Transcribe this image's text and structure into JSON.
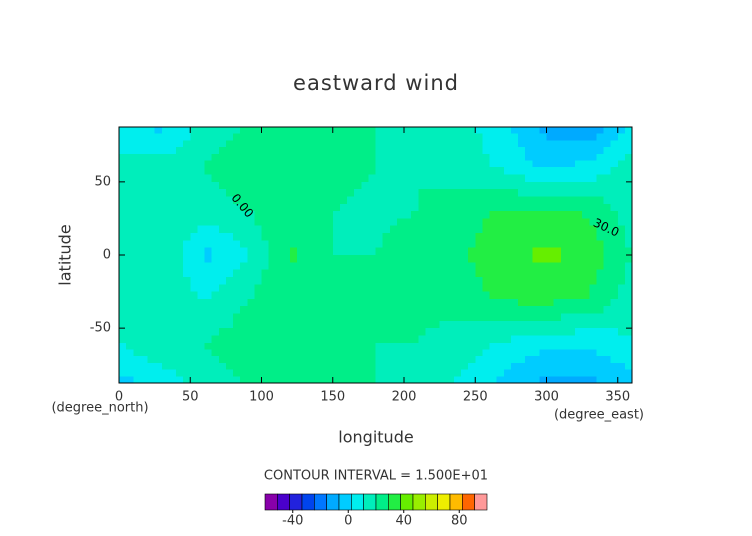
{
  "chart_data": {
    "type": "contour",
    "title": "eastward wind",
    "xlabel": "longitude",
    "ylabel": "latitude",
    "xunits": "(degree_east)",
    "yunits": "(degree_north)",
    "xlim": [
      0,
      360
    ],
    "ylim": [
      -87.5,
      87.5
    ],
    "xticks": [
      0,
      50,
      100,
      150,
      200,
      250,
      300,
      350
    ],
    "yticks": [
      -50,
      0,
      50
    ],
    "x": [
      0,
      30,
      60,
      90,
      120,
      150,
      180,
      210,
      240,
      270,
      300,
      330,
      360
    ],
    "y": [
      87.5,
      60,
      30,
      0,
      -30,
      -60,
      -87.5
    ],
    "z": [
      [
        5,
        0,
        15,
        20,
        20,
        20,
        20,
        18,
        15,
        5,
        -10,
        -15,
        5
      ],
      [
        15,
        15,
        20,
        25,
        25,
        22,
        20,
        20,
        15,
        10,
        0,
        5,
        15
      ],
      [
        15,
        20,
        15,
        20,
        28,
        20,
        18,
        20,
        25,
        30,
        30,
        28,
        15
      ],
      [
        20,
        20,
        0,
        10,
        30,
        20,
        20,
        25,
        28,
        35,
        40,
        35,
        20
      ],
      [
        15,
        20,
        10,
        20,
        28,
        20,
        20,
        22,
        25,
        30,
        32,
        28,
        15
      ],
      [
        10,
        20,
        20,
        25,
        25,
        22,
        20,
        20,
        15,
        10,
        5,
        5,
        10
      ],
      [
        0,
        5,
        15,
        20,
        20,
        20,
        20,
        18,
        10,
        0,
        -10,
        -10,
        0
      ]
    ],
    "annotations": [
      "0.00",
      "30.0"
    ],
    "contour_interval": "CONTOUR INTERVAL = 1.500E+01",
    "colorbar": {
      "lim": [
        -60,
        100
      ],
      "ticks": [
        -40,
        0,
        40,
        80
      ],
      "colors": [
        "#8800aa",
        "#4a00cc",
        "#2222dd",
        "#0044ee",
        "#0077ff",
        "#00aaff",
        "#00ccff",
        "#00eeee",
        "#00eebb",
        "#00ee88",
        "#22ee44",
        "#66ee00",
        "#99ee00",
        "#ccee00",
        "#eeee00",
        "#ffbb00",
        "#ff6600",
        "#ff9999"
      ]
    }
  }
}
